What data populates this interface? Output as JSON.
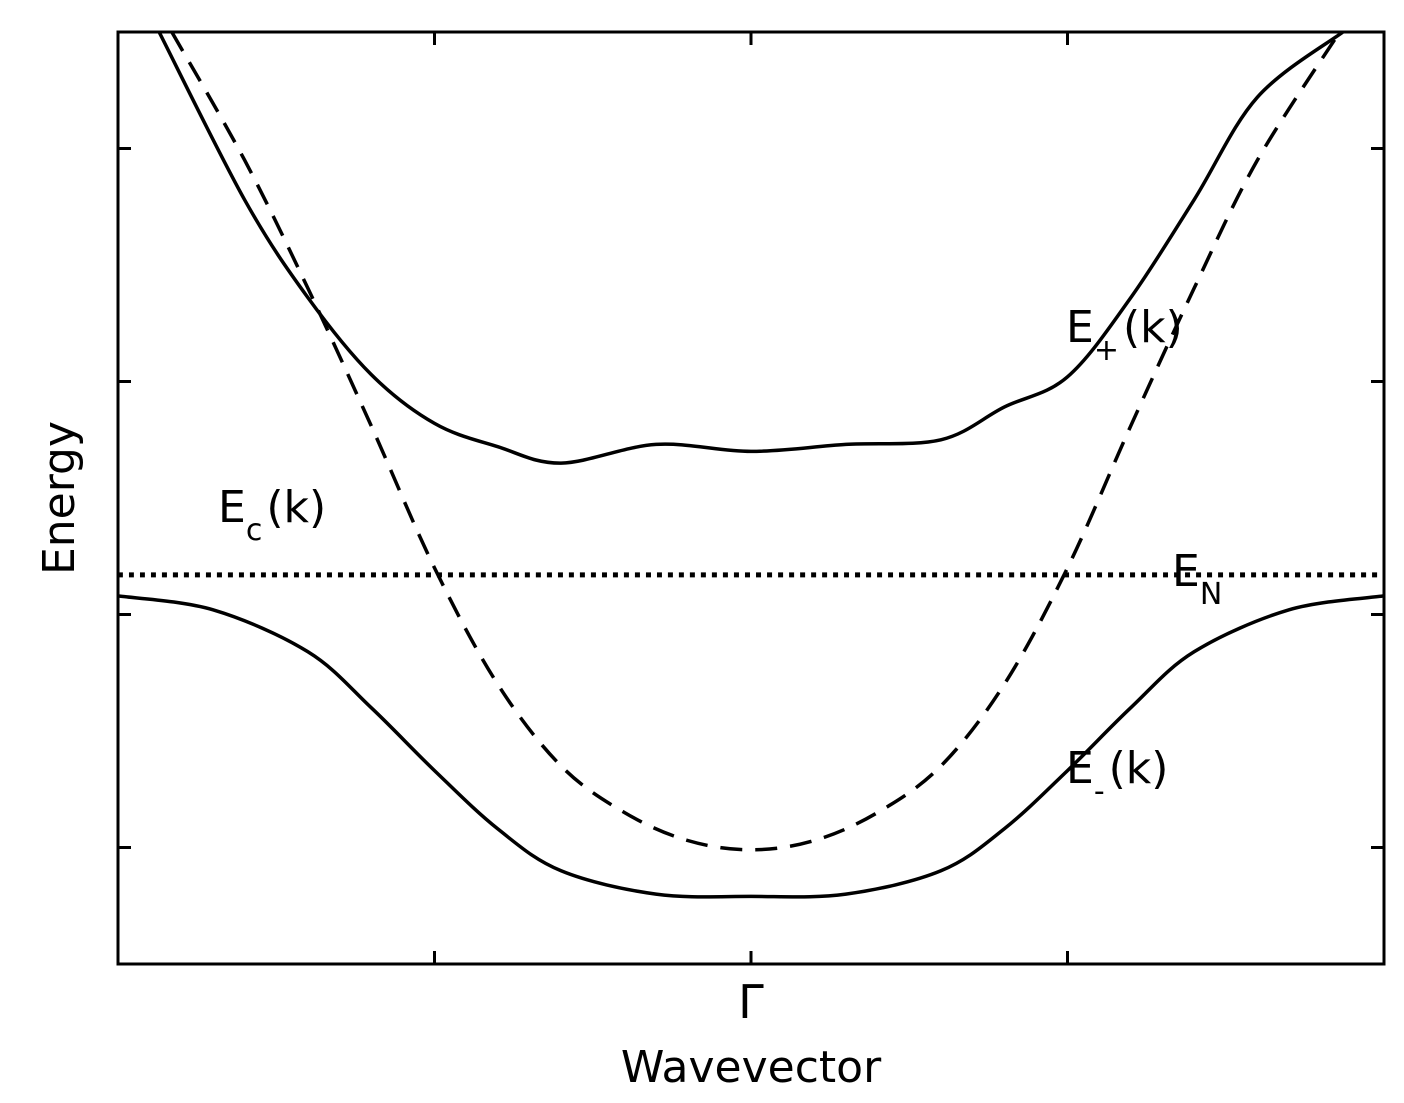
{
  "chart_data": {
    "type": "line",
    "xlabel": "Wavevector",
    "ylabel": "Energy",
    "x_ticks": [
      -2,
      -1,
      0,
      1,
      2
    ],
    "x_tick_labels": [
      "",
      "",
      "Γ",
      "",
      ""
    ],
    "y_ticks": [
      -1.5,
      -0.5,
      0.5,
      1.5
    ],
    "y_tick_labels": [
      "",
      "",
      "",
      ""
    ],
    "xlim": [
      -2,
      2
    ],
    "ylim": [
      -2,
      2
    ],
    "grid": false,
    "legend": "none",
    "series": [
      {
        "name": "E+(k)",
        "base": "E",
        "subscript": "+",
        "suffix": "(k)",
        "style": "solid",
        "x": [
          -1.87,
          -1.6,
          -1.4,
          -1.2,
          -1.0,
          -0.8,
          -0.6,
          -0.3,
          0,
          0.3,
          0.6,
          0.8,
          1.0,
          1.2,
          1.4,
          1.6,
          1.87
        ],
        "y": [
          2.0,
          1.28,
          0.86,
          0.53,
          0.32,
          0.22,
          0.15,
          0.23,
          0.2,
          0.23,
          0.25,
          0.39,
          0.52,
          0.86,
          1.28,
          1.72,
          2.0
        ]
      },
      {
        "name": "E-(k)",
        "base": "E",
        "subscript": "-",
        "suffix": "(k)",
        "style": "solid",
        "x": [
          -2.0,
          -1.7,
          -1.4,
          -1.2,
          -1.0,
          -0.8,
          -0.6,
          -0.3,
          0,
          0.3,
          0.6,
          0.8,
          1.0,
          1.2,
          1.4,
          1.7,
          2.0
        ],
        "y": [
          -0.42,
          -0.48,
          -0.66,
          -0.9,
          -1.17,
          -1.42,
          -1.6,
          -1.7,
          -1.71,
          -1.7,
          -1.6,
          -1.42,
          -1.17,
          -0.9,
          -0.66,
          -0.48,
          -0.42
        ]
      },
      {
        "name": "Ec(k)",
        "base": "E",
        "subscript": "c",
        "suffix": "(k)",
        "style": "dashed",
        "x": [
          -1.83,
          -1.6,
          -1.4,
          -1.2,
          -1.0,
          -0.8,
          -0.6,
          -0.4,
          -0.2,
          0,
          0.2,
          0.4,
          0.6,
          0.8,
          1.0,
          1.2,
          1.4,
          1.6,
          1.86
        ],
        "y": [
          2.0,
          1.45,
          0.9,
          0.31,
          -0.3,
          -0.8,
          -1.15,
          -1.35,
          -1.47,
          -1.51,
          -1.47,
          -1.35,
          -1.15,
          -0.8,
          -0.3,
          0.31,
          0.9,
          1.45,
          2.0
        ]
      },
      {
        "name": "EN",
        "base": "E",
        "subscript": "N",
        "suffix": "",
        "style": "dotted",
        "x": [
          -2.0,
          2.0
        ],
        "y": [
          -0.33,
          -0.33
        ]
      }
    ]
  }
}
